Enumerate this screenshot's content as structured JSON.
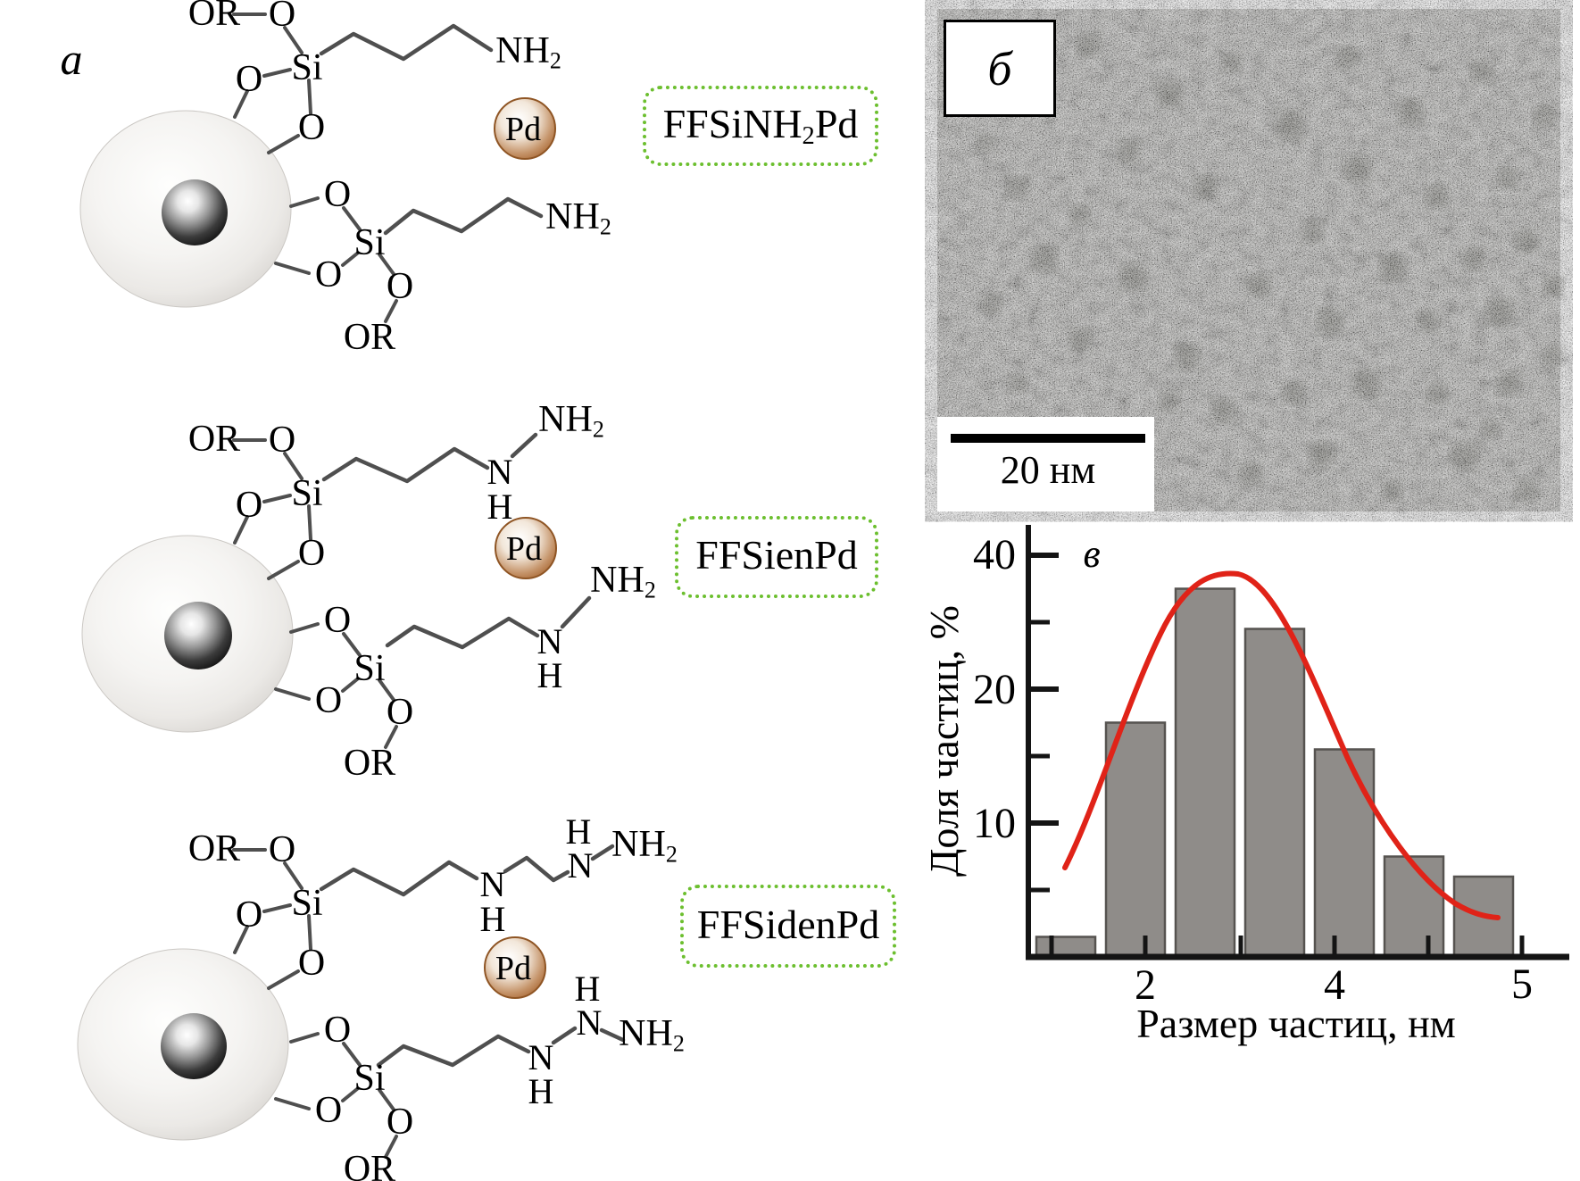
{
  "figure": {
    "description_visible_panels": [
      "a",
      "б",
      "в"
    ]
  },
  "panel_a": {
    "label": "a",
    "atoms": {
      "or": "OR",
      "o": "O",
      "si": "Si",
      "n": "N",
      "h": "H",
      "nh": "NH",
      "sub2": "2",
      "pd": "Pd"
    },
    "boxes": [
      {
        "pre": "FFSiNH",
        "sub": "2",
        "post": "Pd"
      },
      {
        "pre": "FFSienPd",
        "sub": "",
        "post": ""
      },
      {
        "pre": "FFSidenPd",
        "sub": "",
        "post": ""
      }
    ],
    "colors": {
      "box_border_green": "#6cbf2f",
      "pd_brown": "#a5622c",
      "bond_gray": "#4f4f4f"
    }
  },
  "panel_b": {
    "label": "б",
    "scale_bar_label": "20 нм"
  },
  "chart_data": {
    "type": "bar",
    "panel_label": "в",
    "title": "",
    "xlabel": "Размер частиц, нм",
    "ylabel": "Доля частиц, %",
    "x_tick_labels": [
      "2",
      "4",
      "5"
    ],
    "y_tick_labels": [
      "40",
      "20",
      "10"
    ],
    "categories_nm": [
      1.5,
      2,
      2.5,
      3,
      3.5,
      4,
      4.5
    ],
    "values_pct": [
      1.5,
      17.5,
      35,
      29,
      15.5,
      7.5,
      6
    ],
    "ylim": [
      0,
      42
    ],
    "grid": false,
    "legend": false,
    "bar_color": "#8f8c89",
    "bar_edge_color": "#565350",
    "fit_curve": {
      "type": "distribution-fit",
      "color": "#e02318",
      "peak_x_nm": 3,
      "peak_y_pct": 38
    }
  }
}
